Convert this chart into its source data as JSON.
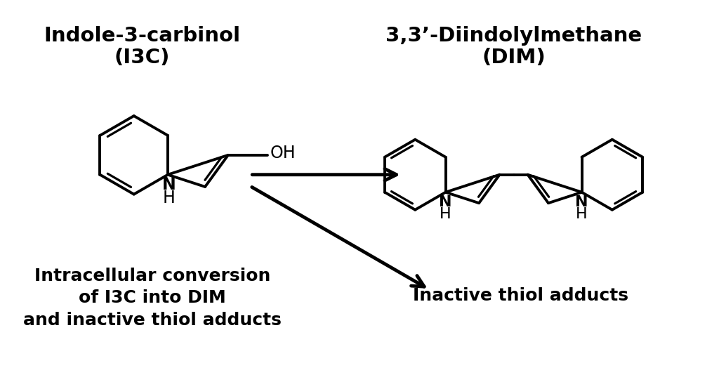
{
  "bg_color": "#ffffff",
  "line_color": "#000000",
  "line_width": 2.8,
  "label_i3c_line1": "Indole-3-carbinol",
  "label_i3c_line2": "(I3C)",
  "label_dim_line1": "3,3’-Diindolylmethane",
  "label_dim_line2": "(DIM)",
  "label_conversion": "Intracellular conversion\nof I3C into DIM\nand inactive thiol adducts",
  "label_inactive": "Inactive thiol adducts",
  "font_size_title": 19,
  "font_size_label": 17,
  "font_size_atom": 15
}
